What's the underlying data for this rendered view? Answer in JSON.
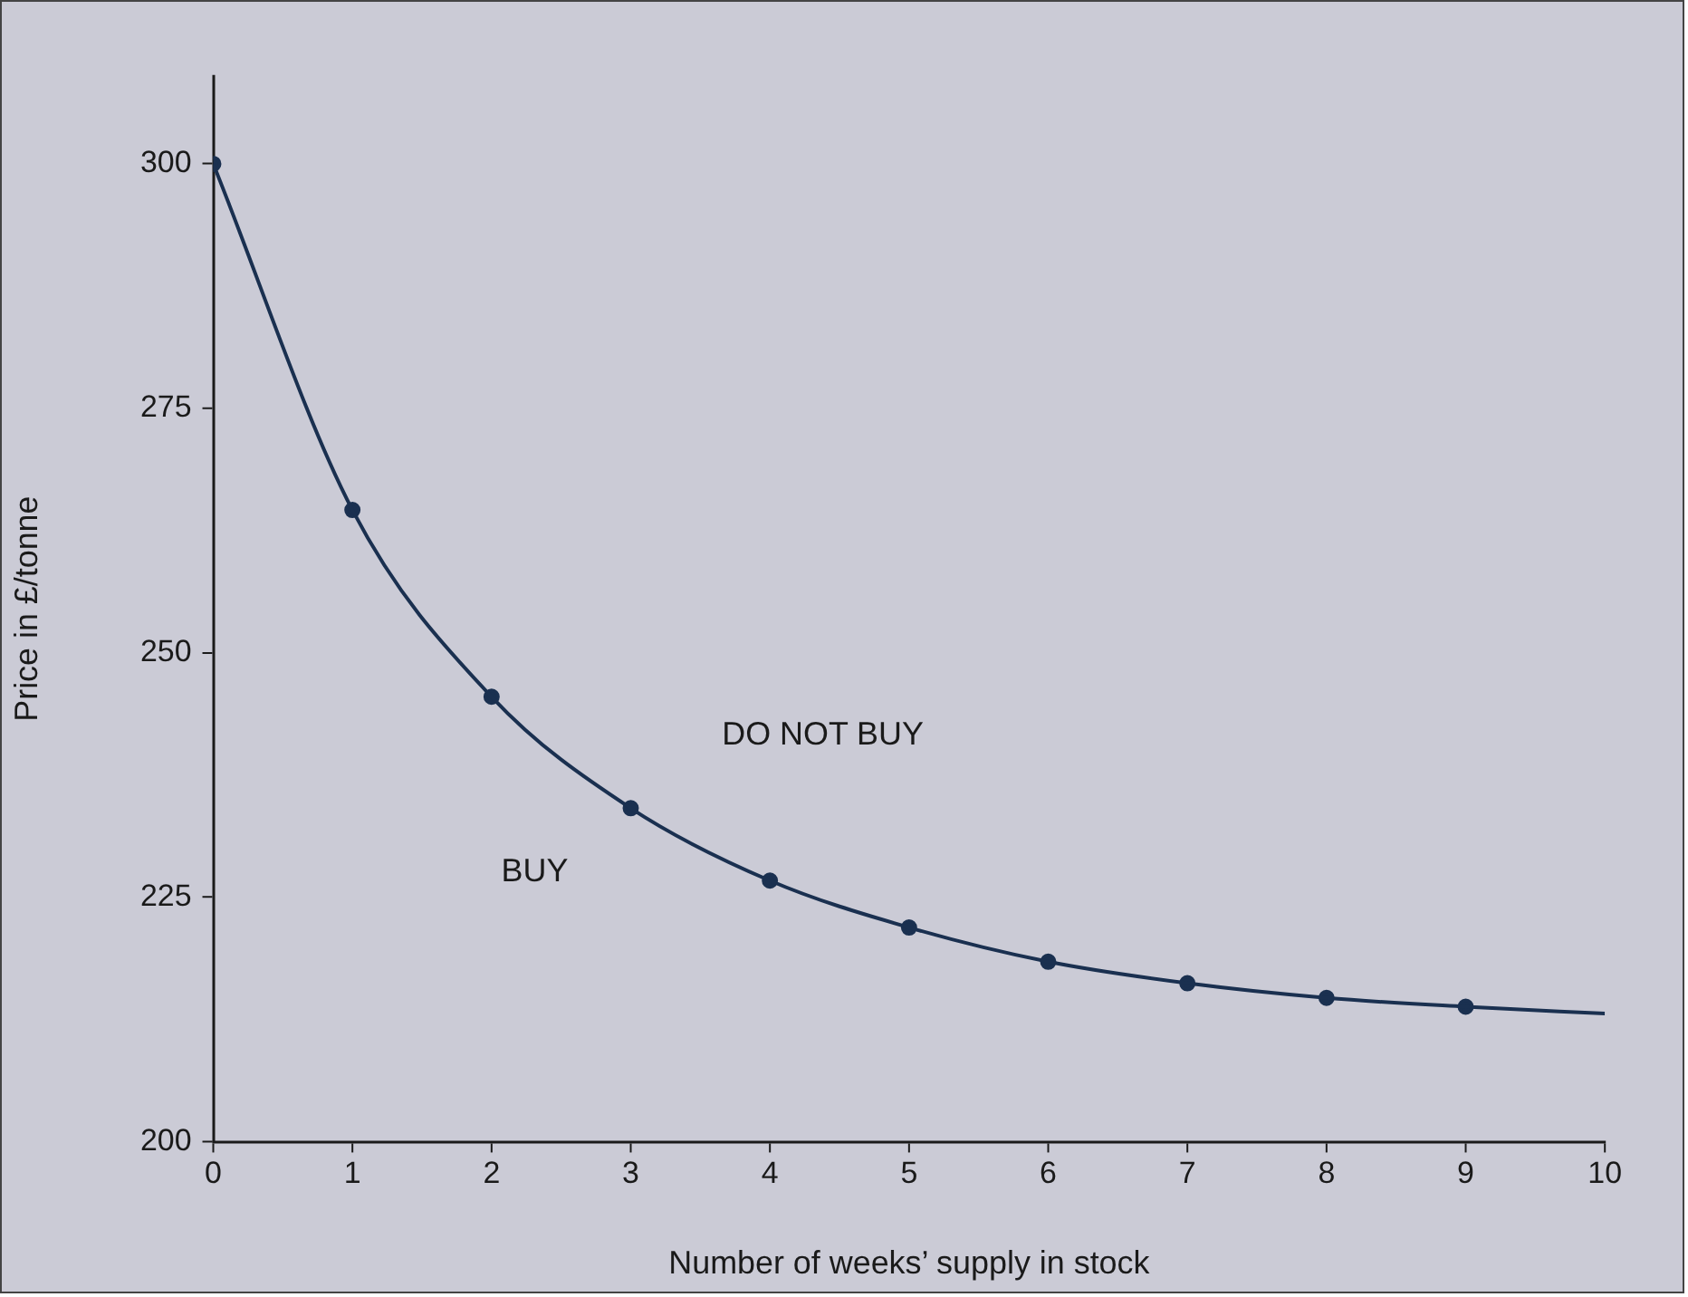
{
  "chart_data": {
    "type": "line",
    "xlabel": "Number of weeks’ supply in stock",
    "ylabel": "Price in £/tonne",
    "xlim": [
      0,
      10
    ],
    "xticks": [
      0,
      1,
      2,
      3,
      4,
      5,
      6,
      7,
      8,
      9,
      10
    ],
    "ylim": [
      200,
      309
    ],
    "yticks": [
      200,
      225,
      250,
      275,
      300
    ],
    "series": [
      {
        "marker": "none",
        "color": "#1a3050",
        "x": [
          0,
          1,
          2,
          3,
          4,
          5,
          6,
          7,
          8,
          9,
          10
        ],
        "values": [
          300,
          264.6,
          245.5,
          234.1,
          226.7,
          221.9,
          218.4,
          216.2,
          214.7,
          213.8,
          213.1
        ]
      },
      {
        "type": "scatter",
        "marker": "circle",
        "color": "#1a3050",
        "x": [
          0,
          1,
          2,
          3,
          4,
          5,
          6,
          7,
          8,
          9
        ],
        "values": [
          300,
          264.6,
          245.5,
          234.1,
          226.7,
          221.9,
          218.4,
          216.2,
          214.7,
          213.8
        ]
      }
    ],
    "annotations": [
      "DO NOT BUY",
      "BUY"
    ],
    "legend": false
  }
}
